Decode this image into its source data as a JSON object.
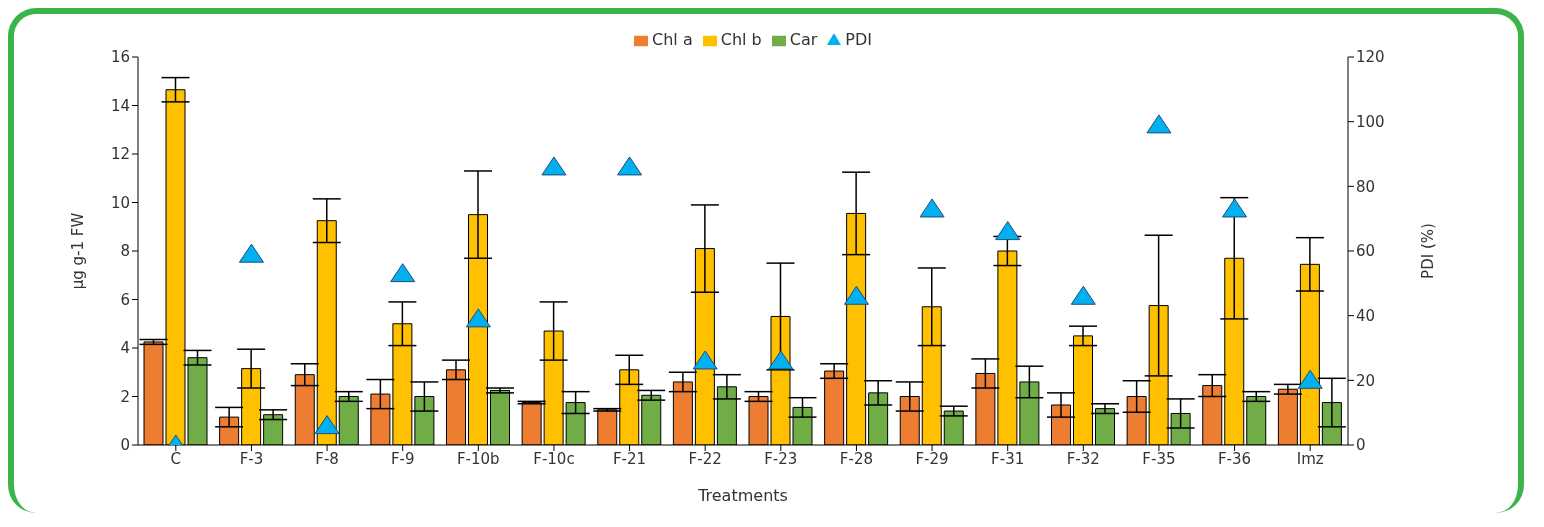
{
  "chart_data": {
    "type": "bar",
    "xlabel": "Treatments",
    "ylabel": "μg g-1 FW",
    "y2label": "PDI (%)",
    "categories": [
      "C",
      "F-3",
      "F-8",
      "F-9",
      "F-10b",
      "F-10c",
      "F-21",
      "F-22",
      "F-23",
      "F-28",
      "F-29",
      "F-31",
      "F-32",
      "F-35",
      "F-36",
      "Imz"
    ],
    "series": [
      {
        "name": "Chl a",
        "color": "#ed7d31",
        "values": [
          4.25,
          1.15,
          2.9,
          2.1,
          3.1,
          1.75,
          1.45,
          2.6,
          2.0,
          3.05,
          2.0,
          2.95,
          1.65,
          2.0,
          2.45,
          2.3
        ],
        "errors": [
          0.1,
          0.4,
          0.45,
          0.6,
          0.4,
          0.05,
          0.05,
          0.4,
          0.2,
          0.3,
          0.6,
          0.6,
          0.5,
          0.65,
          0.45,
          0.2
        ]
      },
      {
        "name": "Chl b",
        "color": "#ffc000",
        "values": [
          14.65,
          3.15,
          9.25,
          5.0,
          9.5,
          4.7,
          3.1,
          8.1,
          5.3,
          9.55,
          5.7,
          8.0,
          4.5,
          5.75,
          7.7,
          7.45
        ],
        "errors": [
          0.5,
          0.8,
          0.9,
          0.9,
          1.8,
          1.2,
          0.6,
          1.8,
          2.2,
          1.7,
          1.6,
          0.6,
          0.4,
          2.9,
          2.5,
          1.1
        ]
      },
      {
        "name": "Car",
        "color": "#70ad47",
        "values": [
          3.6,
          1.25,
          2.0,
          2.0,
          2.25,
          1.75,
          2.05,
          2.4,
          1.55,
          2.15,
          1.4,
          2.6,
          1.5,
          1.3,
          2.0,
          1.75
        ],
        "errors": [
          0.3,
          0.2,
          0.2,
          0.6,
          0.1,
          0.45,
          0.2,
          0.5,
          0.4,
          0.5,
          0.2,
          0.65,
          0.2,
          0.6,
          0.2,
          1.0
        ]
      },
      {
        "name": "PDI",
        "type": "scatter",
        "axis": "y2",
        "marker": "triangle",
        "color": "#00b0f0",
        "values": [
          0,
          59,
          6,
          53,
          39,
          86,
          86,
          26,
          26,
          46,
          73,
          66,
          46,
          99,
          73,
          20
        ]
      }
    ],
    "ylim": [
      0,
      16
    ],
    "yticks": [
      0,
      2,
      4,
      6,
      8,
      10,
      12,
      14,
      16
    ],
    "y2lim": [
      0,
      120
    ],
    "y2ticks": [
      0,
      20,
      40,
      60,
      80,
      100,
      120
    ],
    "grid": false,
    "legend": "top"
  }
}
